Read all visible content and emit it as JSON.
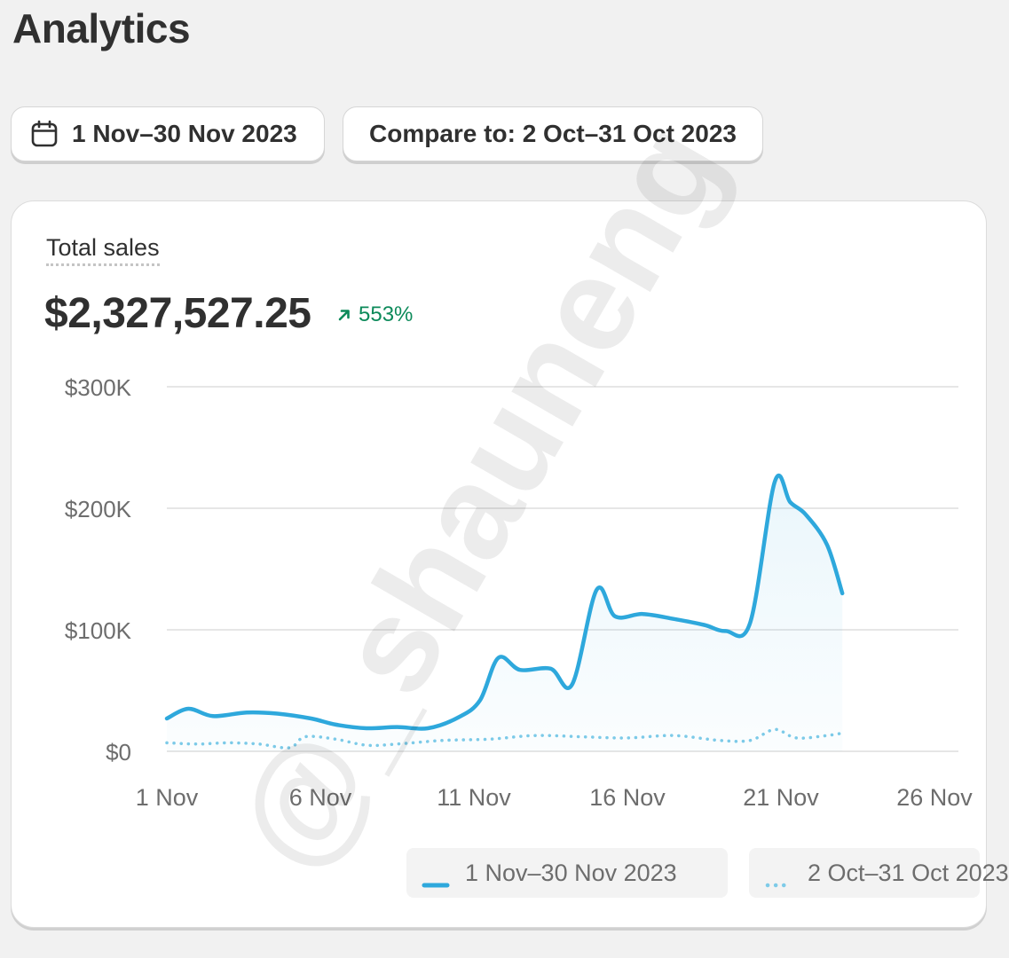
{
  "page": {
    "title": "Analytics"
  },
  "filters": {
    "date_range": "1 Nov–30 Nov 2023",
    "compare": "Compare to: 2 Oct–31 Oct 2023",
    "calendar_icon": "calendar-icon"
  },
  "metric": {
    "label": "Total sales",
    "value": "$2,327,527.25",
    "change": "553%",
    "change_icon": "arrow-up-right-icon",
    "change_color": "#0c8a5a"
  },
  "legend": {
    "current": "1 Nov–30 Nov 2023",
    "previous": "2 Oct–31 Oct 2023"
  },
  "watermark": "@_shauneng",
  "colors": {
    "current_series": "#2ea8dc",
    "previous_series": "#7ecbe8",
    "gridline": "#e6e6e6",
    "axis_text": "#6d6d6d"
  },
  "chart_data": {
    "type": "line",
    "y_ticks": [
      "$0",
      "$100K",
      "$200K",
      "$300K"
    ],
    "y_tick_values": [
      0,
      100000,
      200000,
      300000
    ],
    "ylim": [
      0,
      300000
    ],
    "x_tick_labels": [
      "1 Nov",
      "6 Nov",
      "11 Nov",
      "16 Nov",
      "21 Nov",
      "26 Nov"
    ],
    "x_tick_days": [
      1,
      6,
      11,
      16,
      21,
      26
    ],
    "series": [
      {
        "name": "1 Nov–30 Nov 2023",
        "style": "solid",
        "points": [
          [
            1.0,
            27000
          ],
          [
            1.7,
            35000
          ],
          [
            2.5,
            29000
          ],
          [
            3.6,
            32000
          ],
          [
            4.6,
            31000
          ],
          [
            5.7,
            27000
          ],
          [
            6.5,
            22000
          ],
          [
            7.5,
            19000
          ],
          [
            8.5,
            20000
          ],
          [
            9.5,
            19000
          ],
          [
            10.5,
            28000
          ],
          [
            11.2,
            42000
          ],
          [
            11.8,
            77000
          ],
          [
            12.5,
            67000
          ],
          [
            13.5,
            68000
          ],
          [
            14.2,
            55000
          ],
          [
            15.0,
            133000
          ],
          [
            15.6,
            111000
          ],
          [
            16.5,
            113000
          ],
          [
            17.5,
            109000
          ],
          [
            18.5,
            104000
          ],
          [
            19.2,
            99000
          ],
          [
            20.0,
            106000
          ],
          [
            20.8,
            222000
          ],
          [
            21.3,
            205000
          ],
          [
            21.8,
            195000
          ],
          [
            22.5,
            170000
          ],
          [
            23.0,
            130000
          ]
        ]
      },
      {
        "name": "2 Oct–31 Oct 2023",
        "style": "dotted",
        "points": [
          [
            1.0,
            7000
          ],
          [
            2.0,
            6000
          ],
          [
            3.0,
            7000
          ],
          [
            4.0,
            6000
          ],
          [
            5.0,
            3000
          ],
          [
            5.5,
            12000
          ],
          [
            6.5,
            10000
          ],
          [
            7.5,
            5000
          ],
          [
            8.5,
            6000
          ],
          [
            10.0,
            9000
          ],
          [
            11.5,
            10000
          ],
          [
            13.0,
            13000
          ],
          [
            14.5,
            12000
          ],
          [
            16.0,
            11000
          ],
          [
            17.5,
            13000
          ],
          [
            19.0,
            9000
          ],
          [
            20.0,
            9000
          ],
          [
            20.8,
            18000
          ],
          [
            21.5,
            11000
          ],
          [
            22.5,
            13000
          ],
          [
            23.0,
            15000
          ]
        ]
      }
    ]
  }
}
